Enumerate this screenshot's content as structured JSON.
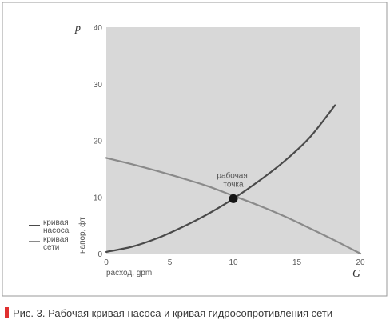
{
  "chart_data": {
    "type": "line",
    "y_letter": "p",
    "x_letter": "G",
    "xlabel": "расход, gpm",
    "ylabel": "напор, фт",
    "xlim": [
      0,
      20
    ],
    "ylim": [
      0,
      40
    ],
    "xticks": [
      0,
      5,
      10,
      15,
      20
    ],
    "yticks": [
      0,
      10,
      20,
      30,
      40
    ],
    "grid": false,
    "legend_position": "left",
    "background_color": "#d8d8d8",
    "series": [
      {
        "name": "кривая насоса",
        "color": "#4a4a4a",
        "x": [
          0,
          2,
          4,
          6,
          8,
          10,
          12,
          14,
          16,
          18
        ],
        "y": [
          0.3,
          1.2,
          2.7,
          4.7,
          7.0,
          9.7,
          12.8,
          16.3,
          20.5,
          26.2
        ]
      },
      {
        "name": "кривая сети",
        "color": "#8a8a8a",
        "x": [
          0,
          2,
          4,
          6,
          8,
          10,
          12,
          14,
          16,
          18,
          20
        ],
        "y": [
          16.9,
          15.8,
          14.6,
          13.3,
          11.9,
          10.2,
          8.5,
          6.6,
          4.5,
          2.3,
          0
        ]
      }
    ],
    "annotation": {
      "text_lines": [
        "рабочая",
        "точка"
      ],
      "x": 10,
      "y": 9.7
    }
  },
  "caption": {
    "text": "Рис. 3. Рабочая кривая насоса и кривая гидросопротивления сети",
    "marker_color": "#e03030"
  }
}
